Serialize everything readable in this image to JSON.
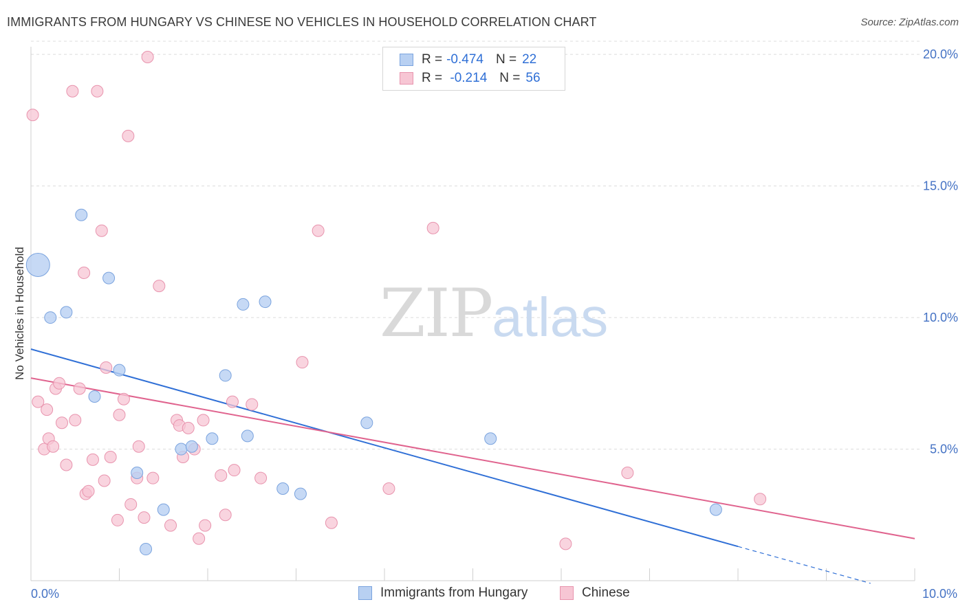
{
  "header": {
    "title": "IMMIGRANTS FROM HUNGARY VS CHINESE NO VEHICLES IN HOUSEHOLD CORRELATION CHART",
    "source": "Source: ZipAtlas.com"
  },
  "watermark": {
    "zip": "ZIP",
    "atlas": "atlas"
  },
  "legend": {
    "rows": [
      {
        "r_label": "R = ",
        "r_value": "-0.474",
        "n_label": "N = ",
        "n_value": "22"
      },
      {
        "r_label": "R = ",
        "r_value": " -0.214",
        "n_label": "N = ",
        "n_value": "56"
      }
    ]
  },
  "colors": {
    "hungary_fill": "#b8d0f2",
    "hungary_stroke": "#7aa3de",
    "hungary_line": "#2f6fd6",
    "chinese_fill": "#f7c6d4",
    "chinese_stroke": "#e893ad",
    "chinese_line": "#e0638e",
    "tick": "#4472c4",
    "grid": "#dcdcdc"
  },
  "chart_data": {
    "type": "scatter",
    "xlabel": "",
    "ylabel": "No Vehicles in Household",
    "xlim": [
      0,
      10
    ],
    "ylim": [
      0,
      20.5
    ],
    "x_tick_labels": [
      {
        "x": 0,
        "label": "0.0%"
      },
      {
        "x": 10,
        "label": "10.0%"
      }
    ],
    "y_tick_labels": [
      {
        "y": 5,
        "label": "5.0%"
      },
      {
        "y": 10,
        "label": "10.0%"
      },
      {
        "y": 15,
        "label": "15.0%"
      },
      {
        "y": 20,
        "label": "20.0%"
      }
    ],
    "x_minor_ticks": [
      1,
      2,
      3,
      4,
      5,
      6,
      7,
      8,
      9,
      10
    ],
    "grid": true,
    "legend_position": "bottom",
    "series": [
      {
        "name": "Immigrants from Hungary",
        "points": [
          {
            "x": 0.08,
            "y": 12.0,
            "big": true
          },
          {
            "x": 0.22,
            "y": 10.0
          },
          {
            "x": 0.4,
            "y": 10.2
          },
          {
            "x": 0.57,
            "y": 13.9
          },
          {
            "x": 0.88,
            "y": 11.5
          },
          {
            "x": 0.72,
            "y": 7.0
          },
          {
            "x": 1.0,
            "y": 8.0
          },
          {
            "x": 1.2,
            "y": 4.1
          },
          {
            "x": 1.5,
            "y": 2.7
          },
          {
            "x": 1.3,
            "y": 1.2
          },
          {
            "x": 1.7,
            "y": 5.0
          },
          {
            "x": 1.82,
            "y": 5.1
          },
          {
            "x": 2.05,
            "y": 5.4
          },
          {
            "x": 2.2,
            "y": 7.8
          },
          {
            "x": 2.4,
            "y": 10.5
          },
          {
            "x": 2.65,
            "y": 10.6
          },
          {
            "x": 2.45,
            "y": 5.5
          },
          {
            "x": 2.85,
            "y": 3.5
          },
          {
            "x": 3.05,
            "y": 3.3
          },
          {
            "x": 3.8,
            "y": 6.0
          },
          {
            "x": 5.2,
            "y": 5.4
          },
          {
            "x": 7.75,
            "y": 2.7
          }
        ],
        "trend": {
          "x1": 0,
          "y1": 8.8,
          "x2": 8.0,
          "y2": 1.3,
          "dash_to_x": 9.5,
          "dash_to_y": -0.1
        }
      },
      {
        "name": "Chinese",
        "points": [
          {
            "x": 0.02,
            "y": 17.7
          },
          {
            "x": 0.08,
            "y": 6.8
          },
          {
            "x": 0.15,
            "y": 5.0
          },
          {
            "x": 0.18,
            "y": 6.5
          },
          {
            "x": 0.2,
            "y": 5.4
          },
          {
            "x": 0.25,
            "y": 5.1
          },
          {
            "x": 0.28,
            "y": 7.3
          },
          {
            "x": 0.32,
            "y": 7.5
          },
          {
            "x": 0.35,
            "y": 6.0
          },
          {
            "x": 0.4,
            "y": 4.4
          },
          {
            "x": 0.47,
            "y": 18.6
          },
          {
            "x": 0.5,
            "y": 6.1
          },
          {
            "x": 0.55,
            "y": 7.3
          },
          {
            "x": 0.6,
            "y": 11.7
          },
          {
            "x": 0.62,
            "y": 3.3
          },
          {
            "x": 0.65,
            "y": 3.4
          },
          {
            "x": 0.7,
            "y": 4.6
          },
          {
            "x": 0.75,
            "y": 18.6
          },
          {
            "x": 0.8,
            "y": 13.3
          },
          {
            "x": 0.83,
            "y": 3.8
          },
          {
            "x": 0.85,
            "y": 8.1
          },
          {
            "x": 0.9,
            "y": 4.7
          },
          {
            "x": 0.98,
            "y": 2.3
          },
          {
            "x": 1.0,
            "y": 6.3
          },
          {
            "x": 1.05,
            "y": 6.9
          },
          {
            "x": 1.1,
            "y": 16.9
          },
          {
            "x": 1.13,
            "y": 2.9
          },
          {
            "x": 1.2,
            "y": 3.9
          },
          {
            "x": 1.22,
            "y": 5.1
          },
          {
            "x": 1.28,
            "y": 2.4
          },
          {
            "x": 1.38,
            "y": 3.9
          },
          {
            "x": 1.45,
            "y": 11.2
          },
          {
            "x": 1.32,
            "y": 19.9
          },
          {
            "x": 1.58,
            "y": 2.1
          },
          {
            "x": 1.65,
            "y": 6.1
          },
          {
            "x": 1.68,
            "y": 5.9
          },
          {
            "x": 1.72,
            "y": 4.7
          },
          {
            "x": 1.78,
            "y": 5.8
          },
          {
            "x": 1.85,
            "y": 5.0
          },
          {
            "x": 1.9,
            "y": 1.6
          },
          {
            "x": 1.95,
            "y": 6.1
          },
          {
            "x": 1.97,
            "y": 2.1
          },
          {
            "x": 2.15,
            "y": 4.0
          },
          {
            "x": 2.2,
            "y": 2.5
          },
          {
            "x": 2.28,
            "y": 6.8
          },
          {
            "x": 2.3,
            "y": 4.2
          },
          {
            "x": 2.5,
            "y": 6.7
          },
          {
            "x": 2.6,
            "y": 3.9
          },
          {
            "x": 3.07,
            "y": 8.3
          },
          {
            "x": 3.25,
            "y": 13.3
          },
          {
            "x": 3.4,
            "y": 2.2
          },
          {
            "x": 4.05,
            "y": 3.5
          },
          {
            "x": 4.55,
            "y": 13.4
          },
          {
            "x": 6.05,
            "y": 1.4
          },
          {
            "x": 6.75,
            "y": 4.1
          },
          {
            "x": 8.25,
            "y": 3.1
          }
        ],
        "trend": {
          "x1": 0,
          "y1": 7.7,
          "x2": 10,
          "y2": 1.6
        }
      }
    ]
  }
}
